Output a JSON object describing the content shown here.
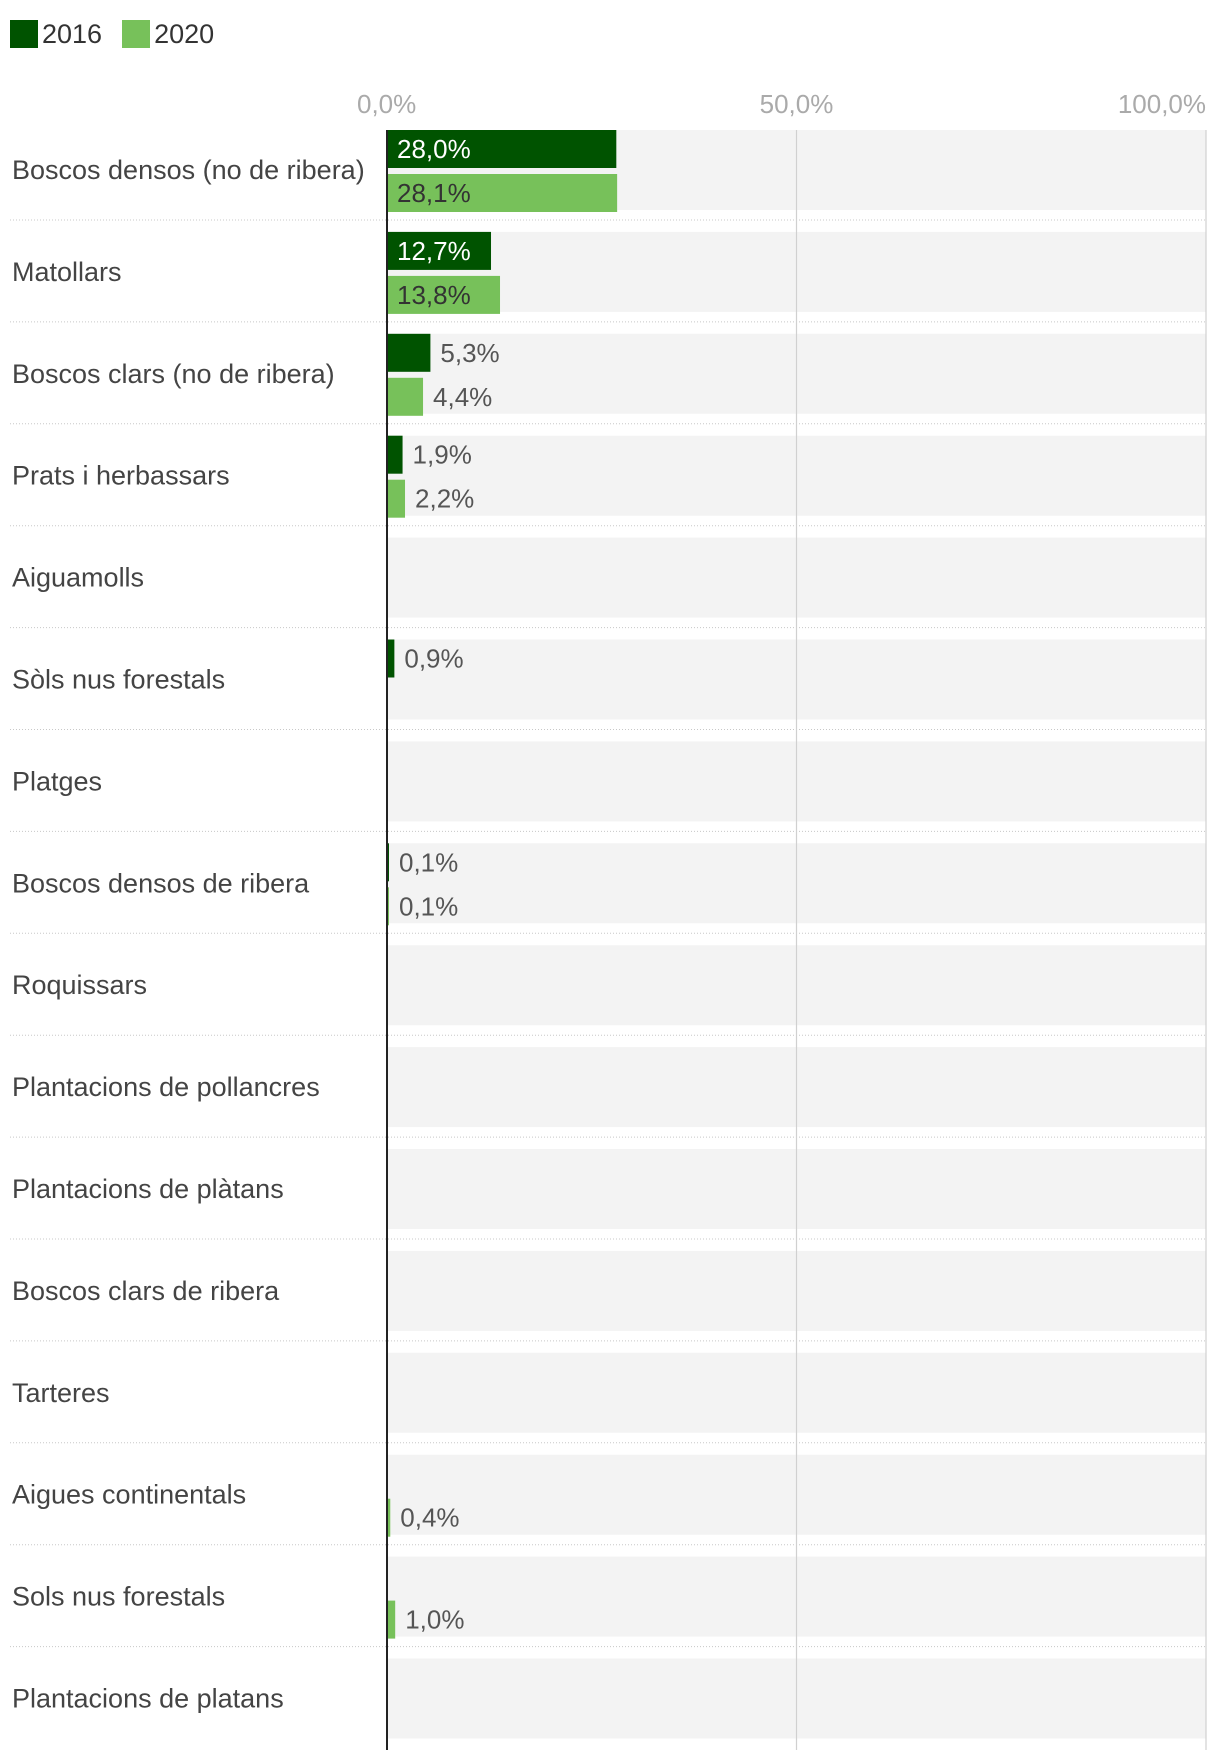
{
  "chart_data": {
    "type": "bar",
    "orientation": "horizontal",
    "xlim": [
      0,
      100
    ],
    "ticks": [
      {
        "value": 0,
        "label": "0,0%"
      },
      {
        "value": 50,
        "label": "50,0%"
      },
      {
        "value": 100,
        "label": "100,0%"
      }
    ],
    "categories": [
      "Boscos densos (no de ribera)",
      "Matollars",
      "Boscos clars (no de ribera)",
      "Prats i herbassars",
      "Aiguamolls",
      "Sòls nus forestals",
      "Platges",
      "Boscos densos de ribera",
      "Roquissars",
      "Plantacions de pollancres",
      "Plantacions de plàtans",
      "Boscos clars de ribera",
      "Tarteres",
      "Aigues continentals",
      "Sols nus forestals",
      "Plantacions de platans"
    ],
    "series": [
      {
        "name": "2016",
        "color": "#005300",
        "values": [
          28.0,
          12.7,
          5.3,
          1.9,
          null,
          0.9,
          null,
          0.1,
          null,
          null,
          null,
          null,
          null,
          null,
          null,
          null
        ],
        "labels": [
          "28,0%",
          "12,7%",
          "5,3%",
          "1,9%",
          null,
          "0,9%",
          null,
          "0,1%",
          null,
          null,
          null,
          null,
          null,
          null,
          null,
          null
        ]
      },
      {
        "name": "2020",
        "color": "#77c15a",
        "values": [
          28.1,
          13.8,
          4.4,
          2.2,
          null,
          null,
          null,
          0.1,
          null,
          null,
          null,
          null,
          null,
          0.4,
          1.0,
          null
        ],
        "labels": [
          "28,1%",
          "13,8%",
          "4,4%",
          "2,2%",
          null,
          null,
          null,
          "0,1%",
          null,
          null,
          null,
          null,
          null,
          "0,4%",
          "1,0%",
          null
        ]
      }
    ],
    "legend_position": "top-left",
    "grid": true,
    "colors": {
      "row_background": "#f3f3f3",
      "gridline": "#d0d0d0",
      "axis": "#222222",
      "category_text": "#444444",
      "tick_text": "#aaaaaa",
      "value_text_inside": "#ffffff",
      "value_text_outside": "#555555"
    }
  }
}
